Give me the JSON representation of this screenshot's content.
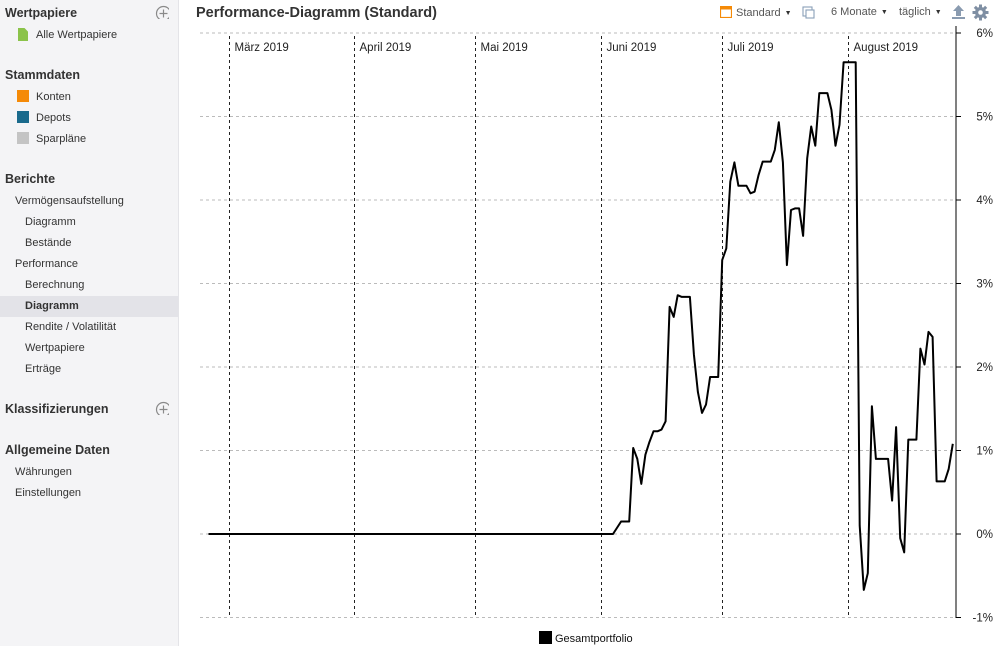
{
  "sidebar": {
    "sections": [
      {
        "title": "Wertpapiere",
        "has_add": true,
        "add_icon": "plus-circle-icon",
        "items": [
          {
            "label": "Alle Wertpapiere",
            "icon": "document-icon",
            "color": "#8bc34a",
            "level": 1
          }
        ]
      },
      {
        "title": "Stammdaten",
        "has_add": false,
        "items": [
          {
            "label": "Konten",
            "icon": "account-icon",
            "color": "#f58a07",
            "level": 1
          },
          {
            "label": "Depots",
            "icon": "portfolio-icon",
            "color": "#1a6a8c",
            "level": 1
          },
          {
            "label": "Sparpläne",
            "icon": "savings-plan-icon",
            "color": "#c4c4c4",
            "level": 1
          }
        ]
      },
      {
        "title": "Berichte",
        "has_add": false,
        "items": [
          {
            "label": "Vermögensaufstellung",
            "level": 1
          },
          {
            "label": "Diagramm",
            "level": 2
          },
          {
            "label": "Bestände",
            "level": 2
          },
          {
            "label": "Performance",
            "level": 1
          },
          {
            "label": "Berechnung",
            "level": 2
          },
          {
            "label": "Diagramm",
            "level": 2,
            "selected": true
          },
          {
            "label": "Rendite / Volatilität",
            "level": 2
          },
          {
            "label": "Wertpapiere",
            "level": 2
          },
          {
            "label": "Erträge",
            "level": 2
          }
        ]
      },
      {
        "title": "Klassifizierungen",
        "has_add": true,
        "add_icon": "plus-circle-icon",
        "items": []
      },
      {
        "title": "Allgemeine Daten",
        "has_add": false,
        "items": [
          {
            "label": "Währungen",
            "level": 1
          },
          {
            "label": "Einstellungen",
            "level": 1
          }
        ]
      }
    ]
  },
  "header": {
    "title": "Performance-Diagramm (Standard)",
    "view_select": "Standard",
    "period_select": "6 Monate",
    "interval_select": "täglich",
    "icons": [
      "view-config-icon",
      "copy-icon",
      "export-icon",
      "settings-gear-icon"
    ]
  },
  "colors": {
    "line": "#000000",
    "accent_orange": "#f58a07",
    "grid": "#bbbbbb"
  },
  "chart_data": {
    "type": "line",
    "xlabel": "",
    "ylabel": "",
    "x_ticks": [
      "März 2019",
      "April 2019",
      "Mai 2019",
      "Juni 2019",
      "Juli 2019",
      "August 2019"
    ],
    "y_ticks": [
      "6%",
      "5%",
      "4%",
      "3%",
      "2%",
      "1%",
      "0%",
      "-1%"
    ],
    "ylim": [
      -1,
      6
    ],
    "xlim": [
      "2019-02-24",
      "2019-09-01"
    ],
    "grid": true,
    "legend": "bottom",
    "series": [
      {
        "name": "Gesamtportfolio",
        "color": "#000000",
        "points": [
          [
            "2019-02-24",
            0
          ],
          [
            "2019-06-04",
            0
          ],
          [
            "2019-06-06",
            0.15
          ],
          [
            "2019-06-07",
            0.15
          ],
          [
            "2019-06-08",
            0.15
          ],
          [
            "2019-06-09",
            1.03
          ],
          [
            "2019-06-10",
            0.9
          ],
          [
            "2019-06-11",
            0.6
          ],
          [
            "2019-06-12",
            0.95
          ],
          [
            "2019-06-13",
            1.1
          ],
          [
            "2019-06-14",
            1.23
          ],
          [
            "2019-06-15",
            1.23
          ],
          [
            "2019-06-16",
            1.25
          ],
          [
            "2019-06-17",
            1.35
          ],
          [
            "2019-06-18",
            2.72
          ],
          [
            "2019-06-19",
            2.6
          ],
          [
            "2019-06-20",
            2.86
          ],
          [
            "2019-06-21",
            2.84
          ],
          [
            "2019-06-22",
            2.84
          ],
          [
            "2019-06-23",
            2.84
          ],
          [
            "2019-06-24",
            2.15
          ],
          [
            "2019-06-25",
            1.7
          ],
          [
            "2019-06-26",
            1.45
          ],
          [
            "2019-06-27",
            1.55
          ],
          [
            "2019-06-28",
            1.88
          ],
          [
            "2019-06-29",
            1.88
          ],
          [
            "2019-06-30",
            1.88
          ],
          [
            "2019-07-01",
            3.28
          ],
          [
            "2019-07-02",
            3.42
          ],
          [
            "2019-07-03",
            4.22
          ],
          [
            "2019-07-04",
            4.45
          ],
          [
            "2019-07-05",
            4.17
          ],
          [
            "2019-07-06",
            4.17
          ],
          [
            "2019-07-07",
            4.17
          ],
          [
            "2019-07-08",
            4.08
          ],
          [
            "2019-07-09",
            4.1
          ],
          [
            "2019-07-10",
            4.3
          ],
          [
            "2019-07-11",
            4.46
          ],
          [
            "2019-07-12",
            4.46
          ],
          [
            "2019-07-13",
            4.46
          ],
          [
            "2019-07-14",
            4.6
          ],
          [
            "2019-07-15",
            4.93
          ],
          [
            "2019-07-16",
            4.45
          ],
          [
            "2019-07-17",
            3.22
          ],
          [
            "2019-07-18",
            3.88
          ],
          [
            "2019-07-19",
            3.9
          ],
          [
            "2019-07-20",
            3.9
          ],
          [
            "2019-07-21",
            3.57
          ],
          [
            "2019-07-22",
            4.5
          ],
          [
            "2019-07-23",
            4.88
          ],
          [
            "2019-07-24",
            4.65
          ],
          [
            "2019-07-25",
            5.28
          ],
          [
            "2019-07-26",
            5.28
          ],
          [
            "2019-07-27",
            5.28
          ],
          [
            "2019-07-28",
            5.08
          ],
          [
            "2019-07-29",
            4.65
          ],
          [
            "2019-07-30",
            4.9
          ],
          [
            "2019-07-31",
            5.65
          ],
          [
            "2019-08-01",
            5.65
          ],
          [
            "2019-08-02",
            5.65
          ],
          [
            "2019-08-03",
            5.65
          ],
          [
            "2019-08-04",
            0.1
          ],
          [
            "2019-08-05",
            -0.67
          ],
          [
            "2019-08-06",
            -0.47
          ],
          [
            "2019-08-07",
            1.53
          ],
          [
            "2019-08-08",
            0.9
          ],
          [
            "2019-08-09",
            0.9
          ],
          [
            "2019-08-10",
            0.9
          ],
          [
            "2019-08-11",
            0.9
          ],
          [
            "2019-08-12",
            0.4
          ],
          [
            "2019-08-13",
            1.28
          ],
          [
            "2019-08-14",
            -0.05
          ],
          [
            "2019-08-15",
            -0.22
          ],
          [
            "2019-08-16",
            1.13
          ],
          [
            "2019-08-17",
            1.13
          ],
          [
            "2019-08-18",
            1.13
          ],
          [
            "2019-08-19",
            2.22
          ],
          [
            "2019-08-20",
            2.03
          ],
          [
            "2019-08-21",
            2.42
          ],
          [
            "2019-08-22",
            2.36
          ],
          [
            "2019-08-23",
            0.63
          ],
          [
            "2019-08-24",
            0.63
          ],
          [
            "2019-08-25",
            0.63
          ],
          [
            "2019-08-26",
            0.78
          ],
          [
            "2019-08-27",
            1.08
          ]
        ]
      }
    ]
  }
}
